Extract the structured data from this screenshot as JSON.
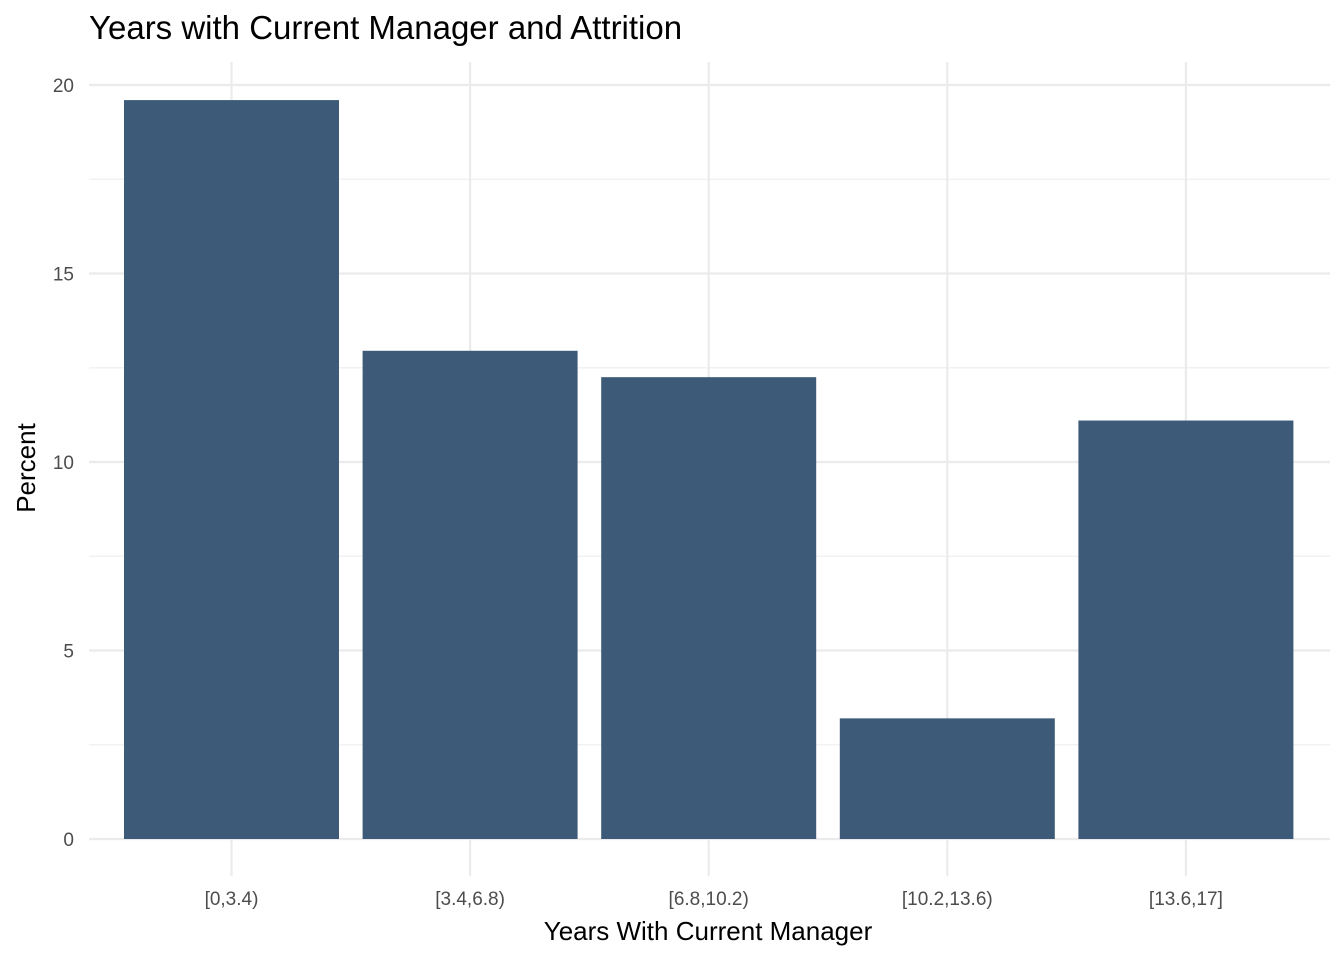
{
  "chart_data": {
    "type": "bar",
    "title": "Years with Current Manager and Attrition",
    "xlabel": "Years With Current Manager",
    "ylabel": "Percent",
    "categories": [
      "[0,3.4)",
      "[3.4,6.8)",
      "[6.8,10.2)",
      "[10.2,13.6)",
      "[13.6,17]"
    ],
    "values": [
      19.6,
      12.95,
      12.25,
      3.2,
      11.1
    ],
    "ylim": [
      0,
      20.7
    ],
    "yticks": [
      0,
      5,
      10,
      15,
      20
    ],
    "ytick_labels": [
      "0",
      "5",
      "10",
      "15",
      "20"
    ],
    "bar_color": "#3d5b78",
    "grid": true,
    "legend": "none"
  }
}
